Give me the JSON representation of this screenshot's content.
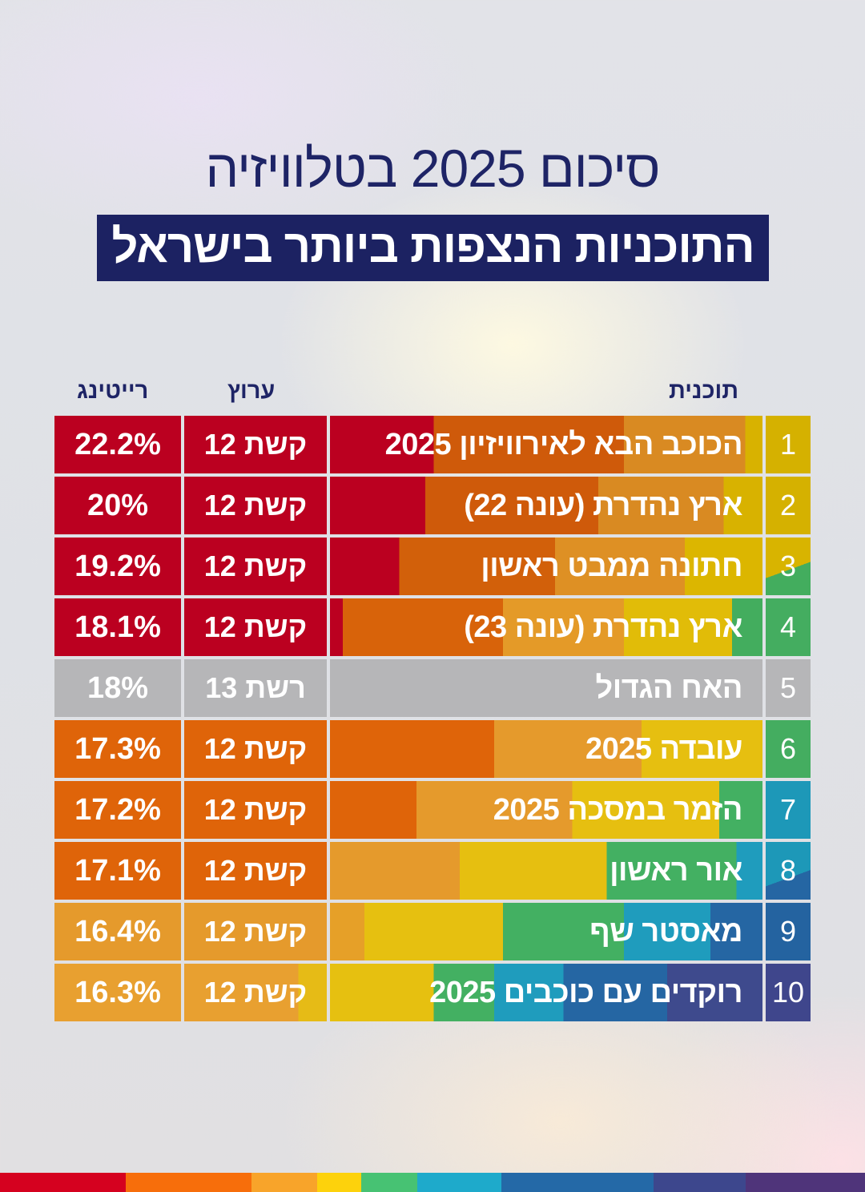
{
  "title": "סיכום 2025 בטלוויזיה",
  "subtitle": "התוכניות הנצפות ביותר בישראל",
  "headers": {
    "program": "תוכנית",
    "channel": "ערוץ",
    "rating": "רייטינג"
  },
  "rows": [
    {
      "rank": "1",
      "program": "הכוכב הבא לאירוויזיון 2025",
      "channel": "קשת 12",
      "rating": "22.2%"
    },
    {
      "rank": "2",
      "program": "ארץ נהדרת (עונה 22)",
      "channel": "קשת 12",
      "rating": "20%"
    },
    {
      "rank": "3",
      "program": "חתונה ממבט ראשון",
      "channel": "קשת 12",
      "rating": "19.2%"
    },
    {
      "rank": "4",
      "program": "ארץ נהדרת (עונה 23)",
      "channel": "קשת 12",
      "rating": "18.1%"
    },
    {
      "rank": "5",
      "program": "האח הגדול",
      "channel": "רשת 13",
      "rating": "18%"
    },
    {
      "rank": "6",
      "program": "עובדה 2025",
      "channel": "קשת 12",
      "rating": "17.3%"
    },
    {
      "rank": "7",
      "program": "הזמר במסכה 2025",
      "channel": "קשת 12",
      "rating": "17.2%"
    },
    {
      "rank": "8",
      "program": "אור ראשון",
      "channel": "קשת 12",
      "rating": "17.1%"
    },
    {
      "rank": "9",
      "program": "מאסטר שף",
      "channel": "קשת 12",
      "rating": "16.4%"
    },
    {
      "rank": "10",
      "program": "רוקדים עם כוכבים 2025",
      "channel": "קשת 12",
      "rating": "16.3%"
    }
  ],
  "bottom_bar_colors": [
    "#d5011f",
    "#f76e0b",
    "#f8a42a",
    "#fdd20c",
    "#47c273",
    "#1eaacb",
    "#2469a7",
    "#3d478d",
    "#4f347a"
  ]
}
